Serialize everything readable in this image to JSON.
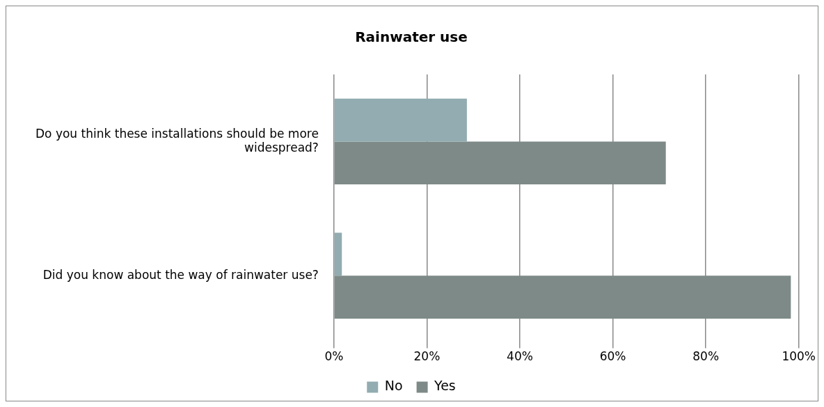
{
  "chart_data": {
    "type": "bar",
    "orientation": "horizontal",
    "title": "Rainwater use",
    "categories": [
      "Do you think these installations should be more widespread?",
      "Did you know about the way of rainwater use?"
    ],
    "series": [
      {
        "name": "No",
        "color": "#92acb1",
        "values": [
          28.6,
          1.7
        ]
      },
      {
        "name": "Yes",
        "color": "#7d8a87",
        "values": [
          71.4,
          98.3
        ]
      }
    ],
    "xlim": [
      0,
      100
    ],
    "xticks": [
      {
        "value": 0,
        "label": "0%"
      },
      {
        "value": 20,
        "label": "20%"
      },
      {
        "value": 40,
        "label": "40%"
      },
      {
        "value": 60,
        "label": "60%"
      },
      {
        "value": 80,
        "label": "80%"
      },
      {
        "value": 100,
        "label": "100%"
      }
    ],
    "grid": "x",
    "legend": "bottom"
  }
}
